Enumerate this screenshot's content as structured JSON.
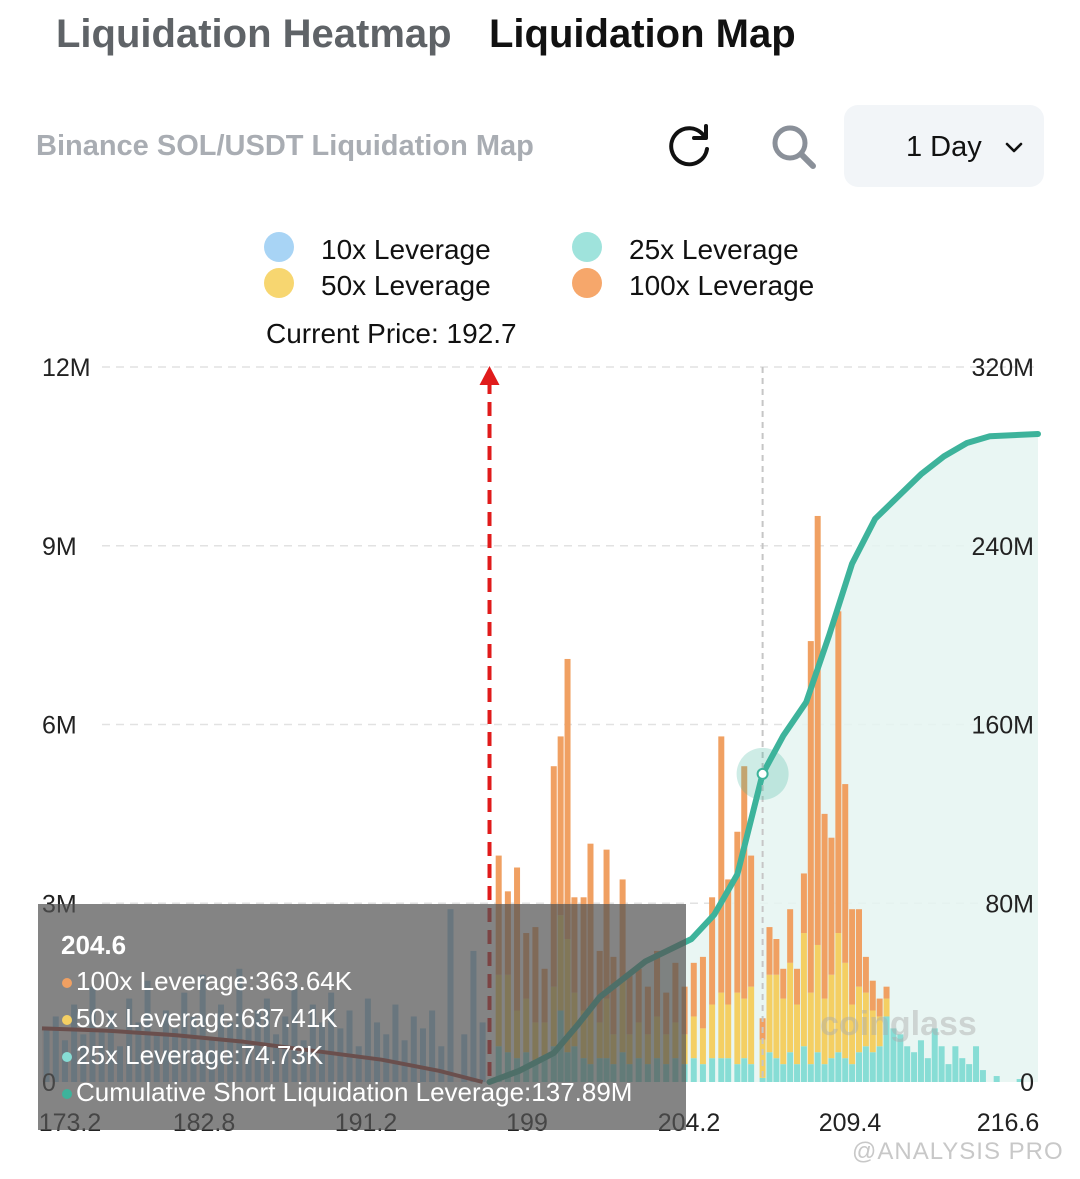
{
  "tabs": [
    {
      "label": "Liquidation Heatmap",
      "active": false
    },
    {
      "label": "Liquidation Map",
      "active": true
    }
  ],
  "toolbar": {
    "subtitle": "Binance SOL/USDT Liquidation Map",
    "refresh_icon": "refresh-icon",
    "search_icon": "search-icon",
    "period_label": "1 Day",
    "period_icon": "chevron-down-icon"
  },
  "legend": [
    {
      "label": "10x Leverage",
      "color": "#a8d4f5"
    },
    {
      "label": "25x Leverage",
      "color": "#9fe3dc"
    },
    {
      "label": "50x Leverage",
      "color": "#f7d670"
    },
    {
      "label": "100x Leverage",
      "color": "#f6a76b"
    }
  ],
  "current_price_label": "Current Price: 192.7",
  "chart_data": {
    "type": "bar",
    "x_ticks": [
      "173.2",
      "182.8",
      "191.2",
      "199",
      "204.2",
      "209.4",
      "216.6"
    ],
    "x_range": [
      173.2,
      216.6
    ],
    "y_left_ticks": [
      "0",
      "3M",
      "6M",
      "9M",
      "12M"
    ],
    "y_left_range": [
      0,
      12000000
    ],
    "y_right_ticks": [
      "0",
      "80M",
      "160M",
      "240M",
      "320M"
    ],
    "y_right_range": [
      0,
      320000000
    ],
    "current_price": 192.7,
    "hover_price": 204.6,
    "grid": true,
    "series_colors": {
      "10x": "#9ecbe8",
      "25x": "#87ddd5",
      "50x": "#f4cf63",
      "100x": "#f0a062",
      "long_cum": "#a0413b",
      "short_cum": "#3db39b"
    },
    "bars_left": [
      {
        "x": 173.4,
        "v10": 0.9
      },
      {
        "x": 173.8,
        "v10": 1.1
      },
      {
        "x": 174.2,
        "v10": 0.7
      },
      {
        "x": 174.6,
        "v10": 1.3
      },
      {
        "x": 175.0,
        "v10": 0.8
      },
      {
        "x": 175.4,
        "v10": 1.6
      },
      {
        "x": 175.8,
        "v10": 0.9
      },
      {
        "x": 176.2,
        "v10": 1.2
      },
      {
        "x": 176.6,
        "v10": 0.6
      },
      {
        "x": 177.0,
        "v10": 1.4
      },
      {
        "x": 177.4,
        "v10": 1.0
      },
      {
        "x": 177.8,
        "v10": 1.7
      },
      {
        "x": 178.2,
        "v10": 0.8
      },
      {
        "x": 178.6,
        "v10": 1.2
      },
      {
        "x": 179.0,
        "v10": 0.9
      },
      {
        "x": 179.4,
        "v10": 1.5
      },
      {
        "x": 179.8,
        "v10": 1.1
      },
      {
        "x": 180.2,
        "v10": 1.8
      },
      {
        "x": 180.6,
        "v10": 0.7
      },
      {
        "x": 181.0,
        "v10": 1.3
      },
      {
        "x": 181.4,
        "v10": 1.0
      },
      {
        "x": 181.8,
        "v10": 1.9
      },
      {
        "x": 182.2,
        "v10": 0.9
      },
      {
        "x": 182.6,
        "v10": 1.2
      },
      {
        "x": 183.0,
        "v10": 1.4
      },
      {
        "x": 183.4,
        "v10": 0.8
      },
      {
        "x": 183.8,
        "v10": 1.1
      },
      {
        "x": 184.2,
        "v10": 1.6
      },
      {
        "x": 184.6,
        "v10": 0.7
      },
      {
        "x": 185.0,
        "v10": 1.3
      },
      {
        "x": 185.4,
        "v10": 1.0
      },
      {
        "x": 185.8,
        "v10": 1.5
      },
      {
        "x": 186.2,
        "v10": 0.9
      },
      {
        "x": 186.6,
        "v10": 1.2
      },
      {
        "x": 187.0,
        "v10": 0.6
      },
      {
        "x": 187.4,
        "v10": 1.4
      },
      {
        "x": 187.8,
        "v10": 1.0
      },
      {
        "x": 188.2,
        "v10": 0.8
      },
      {
        "x": 188.6,
        "v10": 1.3
      },
      {
        "x": 189.0,
        "v10": 0.7
      },
      {
        "x": 189.4,
        "v10": 1.1
      },
      {
        "x": 189.8,
        "v10": 0.9
      },
      {
        "x": 190.2,
        "v10": 1.2
      },
      {
        "x": 190.6,
        "v10": 0.6
      },
      {
        "x": 191.0,
        "v10": 2.9
      },
      {
        "x": 191.6,
        "v10": 0.8
      },
      {
        "x": 192.0,
        "v10": 2.2
      },
      {
        "x": 192.4,
        "v10": 1.0
      }
    ],
    "bars_right": [
      {
        "x": 193.1,
        "v25": 0.6,
        "v50": 1.2,
        "v100": 2.0
      },
      {
        "x": 193.5,
        "v25": 0.5,
        "v50": 1.3,
        "v100": 1.4
      },
      {
        "x": 193.9,
        "v25": 0.4,
        "v50": 0.8,
        "v100": 2.4
      },
      {
        "x": 194.3,
        "v25": 0.5,
        "v50": 0.9,
        "v100": 1.1
      },
      {
        "x": 194.7,
        "v25": 0.3,
        "v50": 0.7,
        "v100": 1.6
      },
      {
        "x": 195.1,
        "v25": 0.4,
        "v50": 0.6,
        "v100": 0.9
      },
      {
        "x": 195.5,
        "v25": 0.6,
        "v50": 1.0,
        "v100": 3.7
      },
      {
        "x": 195.8,
        "v25": 1.2,
        "v50": 1.6,
        "v100": 3.0
      },
      {
        "x": 196.1,
        "v25": 0.5,
        "v50": 1.9,
        "v100": 4.7
      },
      {
        "x": 196.4,
        "v25": 0.6,
        "v50": 0.9,
        "v100": 1.6
      },
      {
        "x": 196.8,
        "v25": 0.4,
        "v50": 0.8,
        "v100": 1.9
      },
      {
        "x": 197.1,
        "v25": 0.3,
        "v50": 0.9,
        "v100": 2.8
      },
      {
        "x": 197.5,
        "v25": 0.4,
        "v50": 0.6,
        "v100": 1.2
      },
      {
        "x": 197.8,
        "v25": 0.4,
        "v50": 1.0,
        "v100": 2.5
      },
      {
        "x": 198.1,
        "v25": 0.3,
        "v50": 0.5,
        "v100": 1.3
      },
      {
        "x": 198.5,
        "v25": 0.5,
        "v50": 1.2,
        "v100": 1.7
      },
      {
        "x": 198.8,
        "v25": 0.3,
        "v50": 0.5,
        "v100": 1.0
      },
      {
        "x": 199.2,
        "v25": 0.4,
        "v50": 0.6,
        "v100": 0.9
      },
      {
        "x": 199.6,
        "v25": 0.3,
        "v50": 0.5,
        "v100": 0.8
      },
      {
        "x": 200.0,
        "v25": 0.4,
        "v50": 0.7,
        "v100": 1.1
      },
      {
        "x": 200.4,
        "v25": 0.3,
        "v50": 0.5,
        "v100": 0.7
      },
      {
        "x": 200.8,
        "v25": 0.4,
        "v50": 0.6,
        "v100": 1.0
      },
      {
        "x": 201.2,
        "v25": 0.3,
        "v50": 0.5,
        "v100": 0.8
      },
      {
        "x": 201.6,
        "v25": 0.4,
        "v50": 0.7,
        "v100": 0.9
      },
      {
        "x": 202.0,
        "v25": 0.3,
        "v50": 0.6,
        "v100": 1.2
      },
      {
        "x": 202.4,
        "v25": 0.4,
        "v50": 0.9,
        "v100": 1.8
      },
      {
        "x": 202.8,
        "v25": 0.4,
        "v50": 1.1,
        "v100": 4.3
      },
      {
        "x": 203.1,
        "v25": 0.4,
        "v50": 0.9,
        "v100": 2.1
      },
      {
        "x": 203.5,
        "v25": 0.3,
        "v50": 1.2,
        "v100": 2.7
      },
      {
        "x": 203.8,
        "v25": 0.4,
        "v50": 1.0,
        "v100": 3.9
      },
      {
        "x": 204.1,
        "v25": 0.3,
        "v50": 1.3,
        "v100": 2.2
      },
      {
        "x": 204.6,
        "v25": 0.07,
        "v50": 0.64,
        "v100": 0.36
      },
      {
        "x": 204.9,
        "v25": 0.5,
        "v50": 1.3,
        "v100": 0.8
      },
      {
        "x": 205.2,
        "v25": 0.4,
        "v50": 1.4,
        "v100": 0.6
      },
      {
        "x": 205.5,
        "v25": 0.3,
        "v50": 1.1,
        "v100": 0.5
      },
      {
        "x": 205.8,
        "v25": 0.5,
        "v50": 1.5,
        "v100": 0.9
      },
      {
        "x": 206.1,
        "v25": 0.3,
        "v50": 1.0,
        "v100": 0.6
      },
      {
        "x": 206.4,
        "v25": 0.6,
        "v50": 1.9,
        "v100": 1.0
      },
      {
        "x": 206.7,
        "v25": 0.3,
        "v50": 1.2,
        "v100": 5.9
      },
      {
        "x": 207.0,
        "v25": 0.5,
        "v50": 1.8,
        "v100": 7.2
      },
      {
        "x": 207.3,
        "v25": 0.3,
        "v50": 1.1,
        "v100": 3.1
      },
      {
        "x": 207.6,
        "v25": 0.4,
        "v50": 1.4,
        "v100": 2.3
      },
      {
        "x": 207.9,
        "v25": 0.5,
        "v50": 2.0,
        "v100": 5.4
      },
      {
        "x": 208.2,
        "v25": 0.4,
        "v50": 1.6,
        "v100": 3.0
      },
      {
        "x": 208.5,
        "v25": 0.3,
        "v50": 1.0,
        "v100": 1.6
      },
      {
        "x": 208.8,
        "v25": 0.5,
        "v50": 1.1,
        "v100": 1.3
      },
      {
        "x": 209.1,
        "v25": 0.6,
        "v50": 0.9,
        "v100": 0.6
      },
      {
        "x": 209.4,
        "v25": 0.5,
        "v50": 0.7,
        "v100": 0.5
      },
      {
        "x": 209.7,
        "v25": 0.6,
        "v50": 0.5,
        "v100": 0.3
      },
      {
        "x": 210.0,
        "v25": 1.1,
        "v50": 0.3,
        "v100": 0.2
      },
      {
        "x": 210.3,
        "v25": 0.9,
        "v50": 0.0,
        "v100": 0.0
      },
      {
        "x": 210.6,
        "v25": 0.8,
        "v50": 0.0,
        "v100": 0.0
      },
      {
        "x": 210.9,
        "v25": 0.6,
        "v50": 0.0,
        "v100": 0.0
      },
      {
        "x": 211.2,
        "v25": 0.5,
        "v50": 0.0,
        "v100": 0.0
      },
      {
        "x": 211.5,
        "v25": 0.7,
        "v50": 0.0,
        "v100": 0.0
      },
      {
        "x": 211.8,
        "v25": 0.4,
        "v50": 0.0,
        "v100": 0.0
      },
      {
        "x": 212.1,
        "v25": 0.9,
        "v50": 0.0,
        "v100": 0.0
      },
      {
        "x": 212.4,
        "v25": 0.6,
        "v50": 0.0,
        "v100": 0.0
      },
      {
        "x": 212.7,
        "v25": 0.3,
        "v50": 0.0,
        "v100": 0.0
      },
      {
        "x": 213.0,
        "v25": 0.6,
        "v50": 0.0,
        "v100": 0.0
      },
      {
        "x": 213.3,
        "v25": 0.4,
        "v50": 0.0,
        "v100": 0.0
      },
      {
        "x": 213.6,
        "v25": 0.3,
        "v50": 0.0,
        "v100": 0.0
      },
      {
        "x": 213.9,
        "v25": 0.6,
        "v50": 0.0,
        "v100": 0.0
      },
      {
        "x": 214.2,
        "v25": 0.2,
        "v50": 0.0,
        "v100": 0.0
      },
      {
        "x": 214.8,
        "v25": 0.1,
        "v50": 0.0,
        "v100": 0.0
      },
      {
        "x": 215.8,
        "v25": 0.05,
        "v50": 0.0,
        "v100": 0.0
      }
    ],
    "long_cum": [
      {
        "x": 173.2,
        "y": 24
      },
      {
        "x": 176.0,
        "y": 23
      },
      {
        "x": 179.0,
        "y": 21
      },
      {
        "x": 182.0,
        "y": 18
      },
      {
        "x": 185.0,
        "y": 14
      },
      {
        "x": 188.0,
        "y": 10
      },
      {
        "x": 190.5,
        "y": 5
      },
      {
        "x": 192.4,
        "y": 0
      }
    ],
    "short_cum": [
      {
        "x": 192.7,
        "y": 0
      },
      {
        "x": 194.0,
        "y": 5
      },
      {
        "x": 195.5,
        "y": 13
      },
      {
        "x": 196.5,
        "y": 25
      },
      {
        "x": 197.5,
        "y": 38
      },
      {
        "x": 198.5,
        "y": 46
      },
      {
        "x": 199.5,
        "y": 54
      },
      {
        "x": 200.5,
        "y": 59
      },
      {
        "x": 201.5,
        "y": 64
      },
      {
        "x": 202.5,
        "y": 75
      },
      {
        "x": 203.5,
        "y": 93
      },
      {
        "x": 204.6,
        "y": 137.89
      },
      {
        "x": 205.5,
        "y": 155
      },
      {
        "x": 206.5,
        "y": 170
      },
      {
        "x": 207.5,
        "y": 200
      },
      {
        "x": 208.5,
        "y": 232
      },
      {
        "x": 209.5,
        "y": 252
      },
      {
        "x": 210.5,
        "y": 262
      },
      {
        "x": 211.5,
        "y": 272
      },
      {
        "x": 212.5,
        "y": 280
      },
      {
        "x": 213.5,
        "y": 286
      },
      {
        "x": 214.5,
        "y": 289
      },
      {
        "x": 216.6,
        "y": 290
      }
    ]
  },
  "tooltip": {
    "title": "204.6",
    "rows": [
      {
        "label": "100x Leverage:363.64K",
        "color": "#f0a062"
      },
      {
        "label": "50x Leverage:637.41K",
        "color": "#f4cf63"
      },
      {
        "label": "25x Leverage:74.73K",
        "color": "#87ddd5"
      },
      {
        "label": "Cumulative Short Liquidation Leverage:137.89M",
        "color": "#3db39b"
      }
    ]
  },
  "watermark_logo": "coinglass",
  "watermark_credit": "@ANALYSIS PRO"
}
